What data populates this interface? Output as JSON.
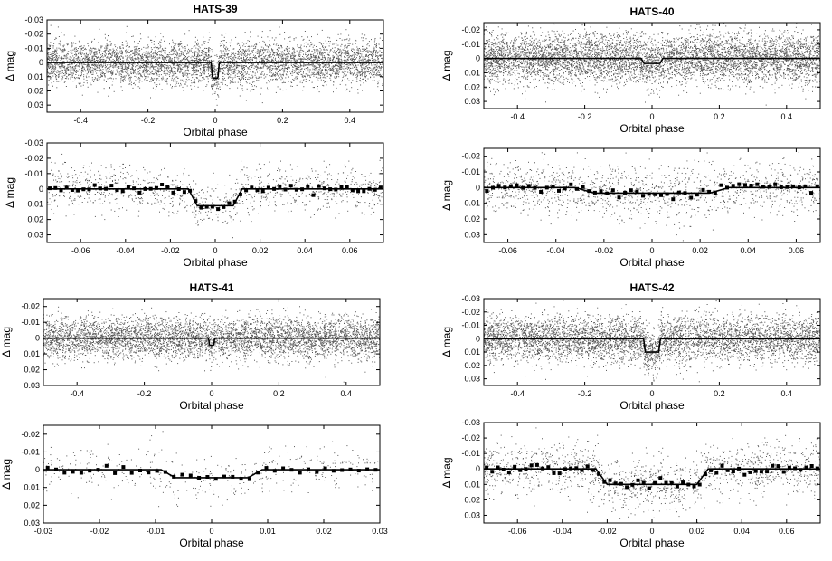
{
  "chart_data": [
    {
      "type": "scatter",
      "title": "HATS-39",
      "xlabel": "Orbital phase",
      "ylabel": "Δ mag",
      "xlim": [
        -0.5,
        0.5
      ],
      "ylim": [
        0.035,
        -0.03
      ],
      "y_inverted": true,
      "x_ticks": [
        "-0.4",
        "-0.2",
        "0",
        "0.2",
        "0.4"
      ],
      "y_ticks": [
        "-0.03",
        "-0.02",
        "-0.01",
        "0",
        "0.01",
        "0.02",
        "0.03"
      ],
      "scatter_sd": 0.0075,
      "scatter_count": 5200,
      "model": {
        "depth": 0.011,
        "half_duration": 0.012,
        "ingress": 0.004
      },
      "binned": false,
      "grid": false
    },
    {
      "type": "scatter",
      "title": "HATS-40",
      "xlabel": "Orbital phase",
      "ylabel": "Δ mag",
      "xlim": [
        -0.5,
        0.5
      ],
      "ylim": [
        0.035,
        -0.025
      ],
      "y_inverted": true,
      "x_ticks": [
        "-0.4",
        "-0.2",
        "0",
        "0.2",
        "0.4"
      ],
      "y_ticks": [
        "-0.02",
        "-0.01",
        "0",
        "0.01",
        "0.02",
        "0.03"
      ],
      "scatter_sd": 0.0085,
      "scatter_count": 6000,
      "model": {
        "depth": 0.0035,
        "half_duration": 0.032,
        "ingress": 0.008
      },
      "binned": false,
      "grid": false
    },
    {
      "type": "scatter",
      "xlabel": "Orbital phase",
      "ylabel": "Δ mag",
      "xlim": [
        -0.075,
        0.075
      ],
      "ylim": [
        0.035,
        -0.03
      ],
      "y_inverted": true,
      "x_ticks": [
        "-0.06",
        "-0.04",
        "-0.02",
        "0",
        "0.02",
        "0.04",
        "0.06"
      ],
      "y_ticks": [
        "-0.03",
        "-0.02",
        "-0.01",
        "0",
        "0.01",
        "0.02",
        "0.03"
      ],
      "scatter_sd": 0.0075,
      "scatter_count": 1100,
      "model": {
        "depth": 0.011,
        "half_duration": 0.012,
        "ingress": 0.004
      },
      "binned": true,
      "bin_width": 0.0025,
      "grid": false
    },
    {
      "type": "scatter",
      "xlabel": "Orbital phase",
      "ylabel": "Δ mag",
      "xlim": [
        -0.07,
        0.07
      ],
      "ylim": [
        0.035,
        -0.025
      ],
      "y_inverted": true,
      "x_ticks": [
        "-0.06",
        "-0.04",
        "-0.02",
        "0",
        "0.02",
        "0.04",
        "0.06"
      ],
      "y_ticks": [
        "-0.02",
        "-0.01",
        "0",
        "0.01",
        "0.02",
        "0.03"
      ],
      "scatter_sd": 0.0085,
      "scatter_count": 1400,
      "model": {
        "depth": 0.0035,
        "half_duration": 0.032,
        "ingress": 0.008
      },
      "binned": true,
      "bin_width": 0.0025,
      "grid": false
    },
    {
      "type": "scatter",
      "title": "HATS-41",
      "xlabel": "Orbital phase",
      "ylabel": "Δ mag",
      "xlim": [
        -0.5,
        0.5
      ],
      "ylim": [
        0.03,
        -0.025
      ],
      "y_inverted": true,
      "x_ticks": [
        "-0.4",
        "-0.2",
        "0",
        "0.2",
        "0.4"
      ],
      "y_ticks": [
        "-0.02",
        "-0.01",
        "0",
        "0.01",
        "0.02",
        "0.03"
      ],
      "scatter_sd": 0.0065,
      "scatter_count": 5000,
      "model": {
        "depth": 0.0045,
        "half_duration": 0.009,
        "ingress": 0.0025
      },
      "binned": false,
      "grid": false
    },
    {
      "type": "scatter",
      "title": "HATS-42",
      "xlabel": "Orbital phase",
      "ylabel": "Δ mag",
      "xlim": [
        -0.5,
        0.5
      ],
      "ylim": [
        0.035,
        -0.03
      ],
      "y_inverted": true,
      "x_ticks": [
        "-0.4",
        "-0.2",
        "0",
        "0.2",
        "0.4"
      ],
      "y_ticks": [
        "-0.03",
        "-0.02",
        "-0.01",
        "0",
        "0.01",
        "0.02",
        "0.03"
      ],
      "scatter_sd": 0.0085,
      "scatter_count": 5200,
      "model": {
        "depth": 0.01,
        "half_duration": 0.025,
        "ingress": 0.005
      },
      "binned": false,
      "grid": false
    },
    {
      "type": "scatter",
      "xlabel": "Orbital phase",
      "ylabel": "Δ mag",
      "xlim": [
        -0.03,
        0.03
      ],
      "ylim": [
        0.03,
        -0.025
      ],
      "y_inverted": true,
      "x_ticks": [
        "-0.03",
        "-0.02",
        "-0.01",
        "0",
        "0.01",
        "0.02",
        "0.03"
      ],
      "y_ticks": [
        "-0.02",
        "-0.01",
        "0",
        "0.01",
        "0.02",
        "0.03"
      ],
      "scatter_sd": 0.0065,
      "scatter_count": 420,
      "model": {
        "depth": 0.0045,
        "half_duration": 0.009,
        "ingress": 0.0025
      },
      "binned": true,
      "bin_width": 0.0015,
      "grid": false
    },
    {
      "type": "scatter",
      "xlabel": "Orbital phase",
      "ylabel": "Δ mag",
      "xlim": [
        -0.075,
        0.075
      ],
      "ylim": [
        0.035,
        -0.03
      ],
      "y_inverted": true,
      "x_ticks": [
        "-0.06",
        "-0.04",
        "-0.02",
        "0",
        "0.02",
        "0.04",
        "0.06"
      ],
      "y_ticks": [
        "-0.03",
        "-0.02",
        "-0.01",
        "0",
        "0.01",
        "0.02",
        "0.03"
      ],
      "scatter_sd": 0.0085,
      "scatter_count": 1500,
      "model": {
        "depth": 0.01,
        "half_duration": 0.025,
        "ingress": 0.005
      },
      "binned": true,
      "bin_width": 0.0025,
      "grid": false
    }
  ],
  "colors": {
    "scatter_point": "#555555",
    "model_line": "#000000",
    "binned_point": "#000000",
    "axes": "#000000"
  }
}
